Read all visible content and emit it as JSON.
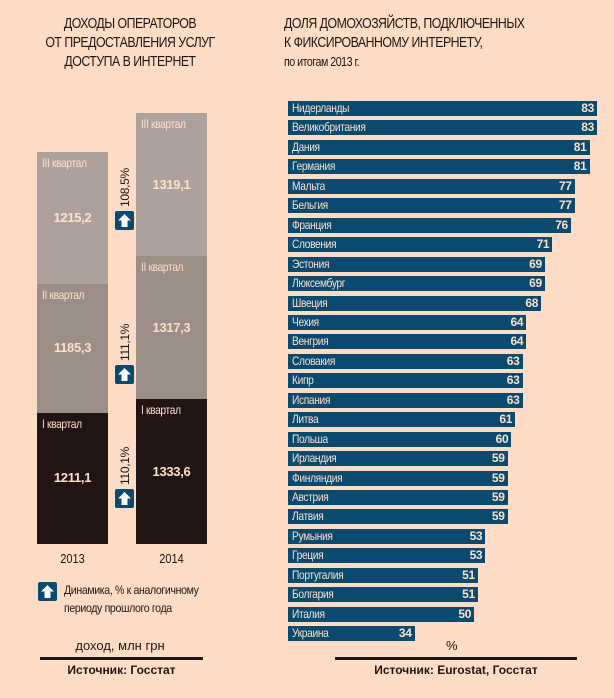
{
  "colors": {
    "background": "#fedcc6",
    "q1": "#201512",
    "q2": "#9b8e87",
    "q3": "#ada29b",
    "bar_blue": "#0a4a6e",
    "label_light": "#fde0cb"
  },
  "chart_data": [
    {
      "type": "bar",
      "stacked": true,
      "title": "ДОХОДЫ ОПЕРАТОРОВ ОТ ПРЕДОСТАВЛЕНИЯ УСЛУГ ДОСТУПА В ИНТЕРНЕТ",
      "title_lines": [
        "ДОХОДЫ ОПЕРАТОРОВ",
        "ОТ ПРЕДОСТАВЛЕНИЯ УСЛУГ",
        "ДОСТУПА В ИНТЕРНЕТ"
      ],
      "categories": [
        "2013",
        "2014"
      ],
      "series": [
        {
          "name": "I квартал",
          "values": [
            1211.1,
            1333.6
          ],
          "labels": [
            "1211,1",
            "1333,6"
          ]
        },
        {
          "name": "II квартал",
          "values": [
            1185.3,
            1317.3
          ],
          "labels": [
            "1185,3",
            "1317,3"
          ]
        },
        {
          "name": "III квартал",
          "values": [
            1215.2,
            1319.1
          ],
          "labels": [
            "1215,2",
            "1319,1"
          ]
        }
      ],
      "growth": [
        {
          "quarter": "I квартал",
          "label": "110,1%"
        },
        {
          "quarter": "II квартал",
          "label": "111,1%"
        },
        {
          "quarter": "III квартал",
          "label": "108,5%"
        }
      ],
      "legend": {
        "icon": "arrow-up-icon",
        "text_lines": [
          "Динамика, % к аналогичному",
          "периоду прошлого года"
        ]
      },
      "ylabel": "доход, млн грн",
      "source": "Источник: Госстат"
    },
    {
      "type": "bar",
      "orientation": "horizontal",
      "title": "ДОЛЯ ДОМОХОЗЯЙСТВ, ПОДКЛЮЧЕННЫХ К ФИКСИРОВАННОМУ ИНТЕРНЕТУ, по итогам 2013 г.",
      "title_lines": [
        "ДОЛЯ ДОМОХОЗЯЙСТВ, ПОДКЛЮЧЕННЫХ",
        "К ФИКСИРОВАННОМУ ИНТЕРНЕТУ,",
        "по итогам 2013 г."
      ],
      "categories": [
        "Нидерланды",
        "Великобритания",
        "Дания",
        "Германия",
        "Мальта",
        "Бельгия",
        "Франция",
        "Словения",
        "Эстония",
        "Люксембург",
        "Швеция",
        "Чехия",
        "Венгрия",
        "Словакия",
        "Кипр",
        "Испания",
        "Литва",
        "Польша",
        "Ирландия",
        "Финляндия",
        "Австрия",
        "Латвия",
        "Румыния",
        "Греция",
        "Португалия",
        "Болгария",
        "Италия",
        "Украина"
      ],
      "values": [
        83,
        83,
        81,
        81,
        77,
        77,
        76,
        71,
        69,
        69,
        68,
        64,
        64,
        63,
        63,
        63,
        61,
        60,
        59,
        59,
        59,
        59,
        53,
        53,
        51,
        51,
        50,
        34
      ],
      "xlabel": "%",
      "xlim": [
        0,
        83
      ],
      "source": "Источник: Eurostat, Госстат"
    }
  ]
}
